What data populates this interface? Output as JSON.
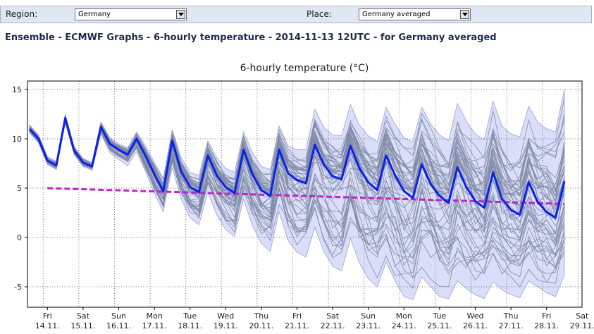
{
  "controls": {
    "region_label": "Region:",
    "region_value": "Germany",
    "place_label": "Place:",
    "place_value": "Germany averaged"
  },
  "page_title": "Ensemble - ECMWF Graphs - 6-hourly temperature - 2014-11-13 12UTC - for Germany averaged",
  "chart_data": {
    "type": "line",
    "title": "6-hourly temperature (°C)",
    "xlabel": "",
    "ylabel": "",
    "ylim": [
      -7,
      16
    ],
    "yticks": [
      15,
      10,
      5,
      0,
      -5
    ],
    "grid": true,
    "x_steps_total": 61,
    "x_ticks": [
      {
        "day": "Fri",
        "date": "14.11.",
        "step": 2
      },
      {
        "day": "Sat",
        "date": "15.11.",
        "step": 6
      },
      {
        "day": "Sun",
        "date": "16.11.",
        "step": 10
      },
      {
        "day": "Mon",
        "date": "17.11.",
        "step": 14
      },
      {
        "day": "Tue",
        "date": "18.11.",
        "step": 18
      },
      {
        "day": "Wed",
        "date": "19.11.",
        "step": 22
      },
      {
        "day": "Thu",
        "date": "20.11.",
        "step": 26
      },
      {
        "day": "Fri",
        "date": "21.11.",
        "step": 30
      },
      {
        "day": "Sat",
        "date": "22.11.",
        "step": 34
      },
      {
        "day": "Sun",
        "date": "23.11.",
        "step": 38
      },
      {
        "day": "Mon",
        "date": "24.11.",
        "step": 42
      },
      {
        "day": "Tue",
        "date": "25.11.",
        "step": 46
      },
      {
        "day": "Wed",
        "date": "26.11.",
        "step": 50
      },
      {
        "day": "Thu",
        "date": "27.11.",
        "step": 54
      },
      {
        "day": "Fri",
        "date": "28.11.",
        "step": 58
      },
      {
        "day": "Sat",
        "date": "29.11.",
        "step": 62
      }
    ],
    "ensemble_members": 50,
    "series": [
      {
        "role": "control",
        "color": "#0b22e8",
        "values": [
          11.0,
          10.0,
          7.8,
          7.3,
          12.1,
          8.8,
          7.6,
          7.2,
          11.2,
          9.5,
          8.9,
          8.4,
          10.0,
          8.3,
          6.4,
          4.7,
          9.8,
          6.7,
          5.1,
          4.6,
          8.3,
          6.3,
          5.1,
          4.5,
          8.9,
          6.4,
          4.8,
          4.2,
          8.9,
          6.5,
          5.8,
          5.5,
          9.4,
          7.4,
          6.2,
          5.9,
          9.3,
          7.0,
          5.6,
          4.8,
          8.3,
          6.3,
          4.7,
          4.0,
          7.4,
          5.4,
          4.2,
          3.5,
          7.1,
          5.1,
          3.7,
          3.0,
          6.6,
          3.9,
          2.8,
          2.3,
          5.6,
          3.6,
          2.6,
          2.0,
          5.7
        ]
      },
      {
        "role": "climate",
        "color": "#c223c7",
        "start": 5.0,
        "end": 3.4
      }
    ],
    "spread_envelope": {
      "color": "#cfd3f5",
      "max_values": [
        11.4,
        10.4,
        8.2,
        7.7,
        12.5,
        9.2,
        8.0,
        7.6,
        11.7,
        10.1,
        9.5,
        9.1,
        10.7,
        9.3,
        7.6,
        6.0,
        10.9,
        8.1,
        6.6,
        6.3,
        9.8,
        8.1,
        7.0,
        6.6,
        10.7,
        8.6,
        7.2,
        6.9,
        11.3,
        9.3,
        8.9,
        8.9,
        13.0,
        11.2,
        10.4,
        10.3,
        13.5,
        11.4,
        10.3,
        9.7,
        13.2,
        11.5,
        10.1,
        9.7,
        13.2,
        11.5,
        10.4,
        9.8,
        13.6,
        11.8,
        10.5,
        9.9,
        13.8,
        11.3,
        10.5,
        10.2,
        13.3,
        11.7,
        11.0,
        10.7,
        15.0
      ],
      "min_values": [
        10.6,
        9.6,
        7.4,
        6.9,
        11.6,
        8.4,
        7.2,
        6.8,
        10.5,
        8.6,
        7.9,
        7.3,
        8.7,
        6.7,
        4.5,
        2.6,
        7.1,
        3.9,
        2.0,
        1.3,
        4.6,
        2.3,
        0.8,
        0.1,
        3.9,
        1.2,
        -0.6,
        -1.4,
        2.6,
        -0.3,
        -1.5,
        -2.0,
        1.0,
        -1.4,
        -2.9,
        -3.4,
        -0.1,
        -2.6,
        -4.2,
        -5.0,
        -2.5,
        -4.4,
        -6.0,
        -6.3,
        -4.0,
        -5.0,
        -6.0,
        -6.2,
        -4.4,
        -5.2,
        -5.8,
        -6.2,
        -4.5,
        -5.3,
        -5.8,
        -6.1,
        -4.4,
        -5.0,
        -5.6,
        -6.0,
        -3.8
      ]
    }
  }
}
